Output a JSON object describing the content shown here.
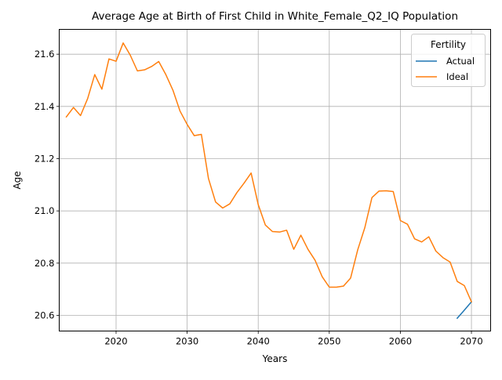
{
  "chart_data": {
    "type": "line",
    "title": "Average Age at Birth of First Child in White_Female_Q2_IQ Population",
    "xlabel": "Years",
    "ylabel": "Age",
    "xlim": [
      2012.0,
      2072.7
    ],
    "ylim": [
      20.54,
      21.695
    ],
    "xticks": [
      2020,
      2030,
      2040,
      2050,
      2060,
      2070
    ],
    "yticks": [
      20.6,
      20.8,
      21.0,
      21.2,
      21.4,
      21.6
    ],
    "grid": true,
    "legend": {
      "title": "Fertility",
      "placement": "top-right"
    },
    "series": [
      {
        "name": "Actual",
        "color": "#1f77b4",
        "x": [
          2068,
          2069,
          2070
        ],
        "y": [
          20.589,
          20.62,
          20.652
        ]
      },
      {
        "name": "Ideal",
        "color": "#ff7f0e",
        "x": [
          2013,
          2014,
          2015,
          2016,
          2017,
          2018,
          2019,
          2020,
          2021,
          2022,
          2023,
          2024,
          2025,
          2026,
          2027,
          2028,
          2029,
          2030,
          2031,
          2032,
          2033,
          2034,
          2035,
          2036,
          2037,
          2038,
          2039,
          2040,
          2041,
          2042,
          2043,
          2044,
          2045,
          2046,
          2047,
          2048,
          2049,
          2050,
          2051,
          2052,
          2053,
          2054,
          2055,
          2056,
          2057,
          2058,
          2059,
          2060,
          2061,
          2062,
          2063,
          2064,
          2065,
          2066,
          2067,
          2068,
          2069,
          2070
        ],
        "y": [
          21.36,
          21.396,
          21.365,
          21.43,
          21.522,
          21.466,
          21.582,
          21.573,
          21.643,
          21.596,
          21.536,
          21.54,
          21.553,
          21.572,
          21.522,
          21.462,
          21.382,
          21.331,
          21.288,
          21.293,
          21.124,
          21.034,
          21.011,
          21.027,
          21.07,
          21.106,
          21.145,
          21.024,
          20.946,
          20.921,
          20.919,
          20.926,
          20.853,
          20.907,
          20.853,
          20.811,
          20.748,
          20.708,
          20.708,
          20.712,
          20.743,
          20.851,
          20.936,
          21.051,
          21.076,
          21.077,
          21.074,
          20.963,
          20.949,
          20.893,
          20.881,
          20.901,
          20.846,
          20.821,
          20.804,
          20.73,
          20.714,
          20.652
        ]
      }
    ]
  }
}
